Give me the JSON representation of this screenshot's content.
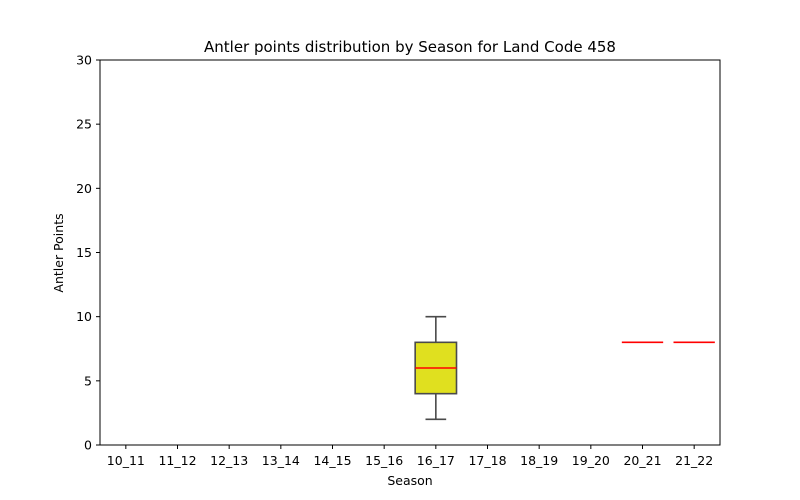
{
  "chart_data": {
    "type": "box",
    "title": "Antler points distribution by Season for Land Code 458",
    "xlabel": "Season",
    "ylabel": "Antler Points",
    "ylim": [
      0,
      30
    ],
    "yticks": [
      0,
      5,
      10,
      15,
      20,
      25,
      30
    ],
    "grid": false,
    "categories": [
      "10_11",
      "11_12",
      "12_13",
      "13_14",
      "14_15",
      "15_16",
      "16_17",
      "17_18",
      "18_19",
      "19_20",
      "20_21",
      "21_22"
    ],
    "boxes": [
      {
        "category": "16_17",
        "min": 2,
        "q1": 4,
        "median": 6,
        "q3": 8,
        "max": 10
      },
      {
        "category": "20_21",
        "min": 8,
        "q1": 8,
        "median": 8,
        "q3": 8,
        "max": 8
      },
      {
        "category": "21_22",
        "min": 8,
        "q1": 8,
        "median": 8,
        "q3": 8,
        "max": 8
      }
    ],
    "colors": {
      "box_fill": "#e0e01f",
      "box_edge": "#4a4a4a",
      "median": "#ff0000"
    }
  }
}
